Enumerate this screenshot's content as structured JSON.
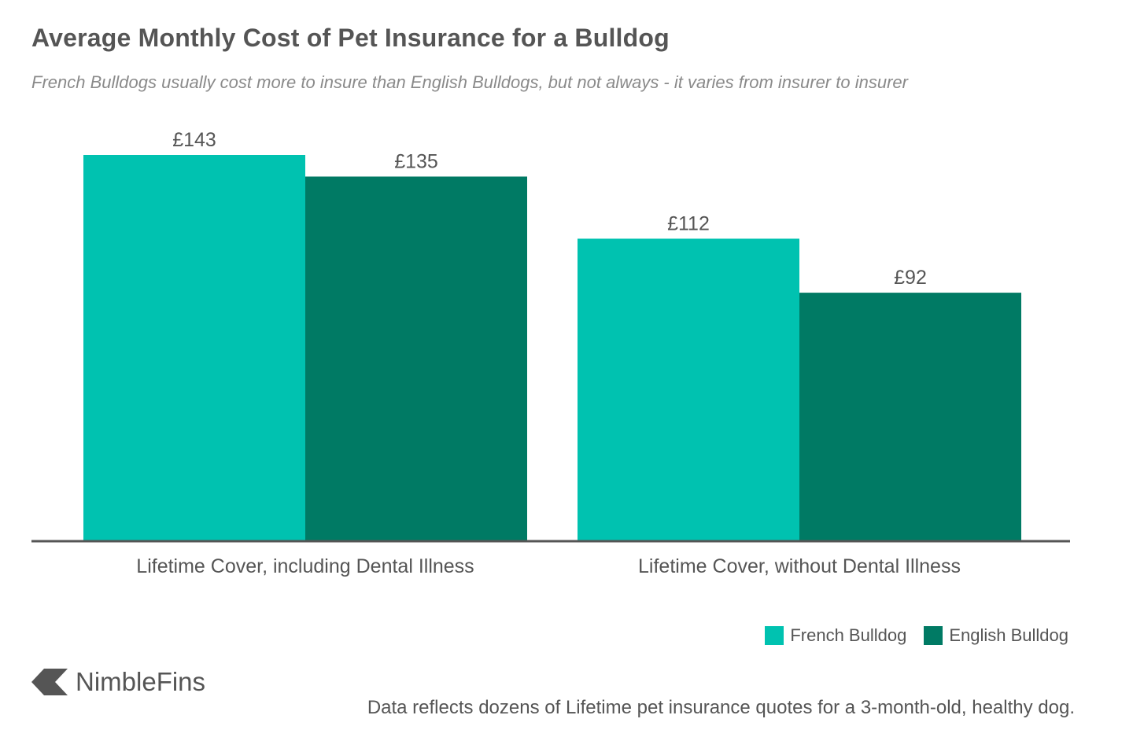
{
  "chart_data": {
    "type": "bar",
    "title": "Average Monthly Cost of Pet Insurance for a Bulldog",
    "subtitle": "French Bulldogs usually cost more to insure than English Bulldogs, but not always - it varies from insurer to insurer",
    "categories": [
      "Lifetime Cover, including Dental Illness",
      "Lifetime Cover, without Dental Illness"
    ],
    "series": [
      {
        "name": "French Bulldog",
        "color": "#00c2b0",
        "values": [
          143,
          112
        ],
        "labels": [
          "£143",
          "£112"
        ]
      },
      {
        "name": "English Bulldog",
        "color": "#007a64",
        "values": [
          135,
          92
        ],
        "labels": [
          "£135",
          "£92"
        ]
      }
    ],
    "ylim": [
      0,
      143
    ],
    "xlabel": "",
    "ylabel": "",
    "grid": false,
    "legend_position": "bottom-right",
    "axis_color": "#555555"
  },
  "brand": {
    "name": "NimbleFins",
    "logo_icon": "chevron-left-logo-icon"
  },
  "footnote": "Data reflects dozens of Lifetime pet insurance quotes for a 3-month-old, healthy dog."
}
